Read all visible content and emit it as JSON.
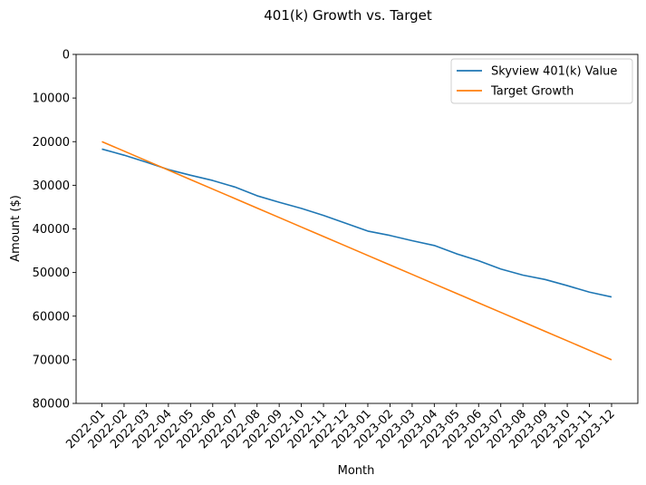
{
  "chart_data": {
    "type": "line",
    "title": "401(k) Growth vs. Target",
    "xlabel": "Month",
    "ylabel": "Amount ($)",
    "ylim": [
      80000,
      0
    ],
    "y_inverted": true,
    "yticks": [
      0,
      10000,
      20000,
      30000,
      40000,
      50000,
      60000,
      70000,
      80000
    ],
    "grid": false,
    "legend_position": "upper right",
    "categories": [
      "2022-01",
      "2022-02",
      "2022-03",
      "2022-04",
      "2022-05",
      "2022-06",
      "2022-07",
      "2022-08",
      "2022-09",
      "2022-10",
      "2022-11",
      "2022-12",
      "2023-01",
      "2023-02",
      "2023-03",
      "2023-04",
      "2023-05",
      "2023-06",
      "2023-07",
      "2023-08",
      "2023-09",
      "2023-10",
      "2023-11",
      "2023-12"
    ],
    "series": [
      {
        "name": "Skyview 401(k) Value",
        "color": "#1f77b4",
        "values": [
          21700,
          23100,
          24700,
          26400,
          27700,
          28900,
          30400,
          32400,
          33900,
          35300,
          36900,
          38700,
          40500,
          41500,
          42700,
          43800,
          45700,
          47300,
          49200,
          50600,
          51600,
          53000,
          54500,
          55600
        ]
      },
      {
        "name": "Target Growth",
        "color": "#ff7f0e",
        "values": [
          20000,
          22170,
          24350,
          26520,
          28700,
          30870,
          33040,
          35220,
          37390,
          39570,
          41740,
          43910,
          46090,
          48260,
          50430,
          52610,
          54780,
          56960,
          59130,
          61300,
          63480,
          65650,
          67830,
          70000
        ]
      }
    ]
  }
}
